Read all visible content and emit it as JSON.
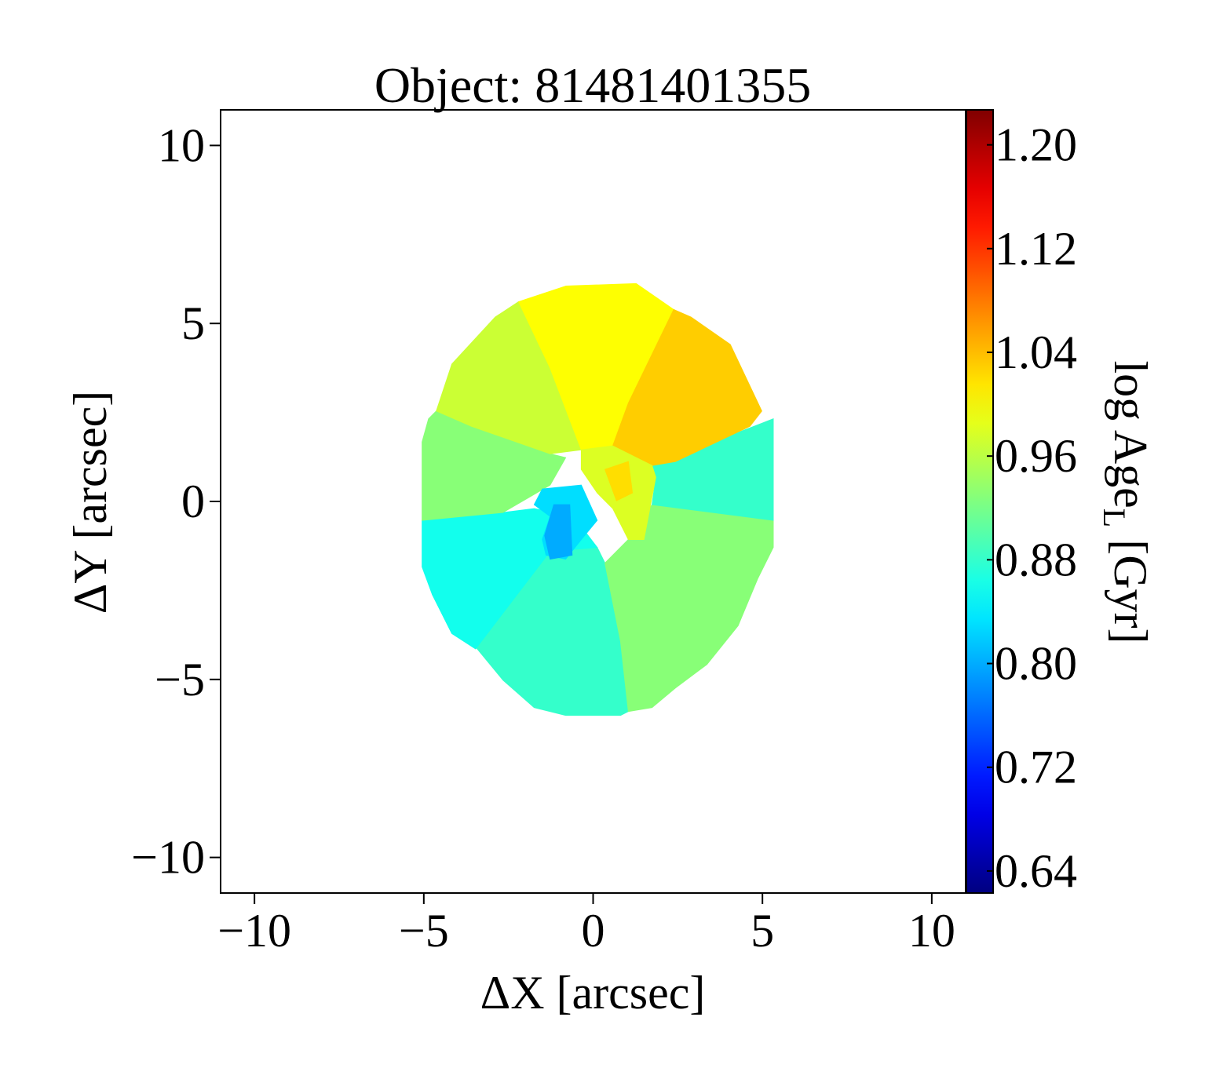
{
  "chart_data": {
    "type": "binned-map",
    "title": "Object: 81481401355",
    "xlabel": "ΔX [arcsec]",
    "ylabel": "ΔY [arcsec]",
    "colorbar_label": [
      "log Age",
      "L",
      " [Gyr]"
    ],
    "colormap": "jet",
    "xlim": [
      -11,
      11
    ],
    "ylim": [
      -11,
      11
    ],
    "clim": [
      0.623,
      1.227
    ],
    "xticks": [
      {
        "value": -10,
        "label": "−10"
      },
      {
        "value": -5,
        "label": "−5"
      },
      0,
      5,
      10
    ],
    "yticks": [
      {
        "value": -10,
        "label": "−10"
      },
      {
        "value": -5,
        "label": "−5"
      },
      0,
      5,
      10
    ],
    "cticks": [
      0.64,
      0.72,
      {
        "value": 0.8,
        "label": "0.80"
      },
      0.88,
      0.96,
      1.04,
      1.12,
      {
        "value": 1.2,
        "label": "1.20"
      }
    ],
    "bins": [
      {
        "value": 0.88,
        "x": [
          -2.66,
          -1.74,
          -0.81,
          0.81,
          1.04,
          0.81,
          0.35,
          0.12,
          -1.27,
          -3.47,
          -4.17,
          -4.75
        ],
        "y": [
          -5.02,
          -5.79,
          -6.01,
          -6.01,
          -5.9,
          -3.93,
          -1.73,
          -1.29,
          -1.4,
          -4.14,
          -3.71,
          -2.61
        ]
      },
      {
        "value": 0.86,
        "x": [
          -5.05,
          -5.05,
          -4.75,
          -4.17,
          -3.47,
          -1.27,
          0.12,
          -0.58,
          -1.74,
          -2.66
        ],
        "y": [
          -0.53,
          -1.84,
          -2.61,
          -3.71,
          -4.14,
          -1.4,
          -1.29,
          -0.42,
          -0.2,
          -0.31
        ]
      },
      {
        "value": 0.93,
        "x": [
          0.35,
          1.04,
          1.74,
          5.32,
          5.32,
          4.86,
          4.28,
          3.36,
          2.43,
          1.74,
          1.04,
          0.81
        ],
        "y": [
          -1.73,
          -1.07,
          -0.09,
          -0.53,
          -1.29,
          -2.17,
          -3.49,
          -4.58,
          -5.24,
          -5.79,
          -5.9,
          -3.93
        ]
      },
      {
        "value": 0.88,
        "x": [
          1.74,
          4.75,
          5.32,
          5.32,
          1.74,
          1.85
        ],
        "y": [
          1.01,
          2.11,
          2.32,
          -0.53,
          -0.09,
          0.68
        ]
      },
      {
        "value": 0.93,
        "x": [
          -4.63,
          -4.86,
          -5.05,
          -5.05,
          -2.66,
          -1.27,
          -0.81,
          -1.27,
          -3.59
        ],
        "y": [
          2.54,
          2.32,
          1.67,
          -0.53,
          -0.31,
          0.46,
          1.23,
          1.34,
          2.11
        ]
      },
      {
        "value": 0.97,
        "x": [
          -2.2,
          -1.27,
          -0.35,
          -1.27,
          -3.59,
          -4.63,
          -4.17,
          -2.89
        ],
        "y": [
          5.61,
          3.75,
          1.45,
          1.34,
          2.11,
          2.54,
          3.86,
          5.18
        ]
      },
      {
        "value": 1.0,
        "x": [
          -0.8,
          1.27,
          2.38,
          1.04,
          0.58,
          -0.35,
          -1.27,
          -2.2
        ],
        "y": [
          6.05,
          6.12,
          5.39,
          2.76,
          1.56,
          1.45,
          3.75,
          5.61
        ]
      },
      {
        "value": 1.03,
        "x": [
          2.38,
          2.89,
          4.05,
          4.98,
          4.63,
          2.43,
          1.74,
          0.58,
          1.04
        ],
        "y": [
          5.39,
          5.18,
          4.41,
          2.54,
          2.11,
          1.12,
          1.01,
          1.56,
          2.76
        ]
      },
      {
        "value": 0.98,
        "x": [
          -0.35,
          0.58,
          1.74,
          1.85,
          1.5,
          1.04,
          0.58,
          0.12,
          -0.35
        ],
        "y": [
          1.45,
          1.56,
          1.01,
          0.68,
          -1.07,
          -1.07,
          -0.2,
          0.24,
          0.9
        ]
      },
      {
        "value": 1.02,
        "x": [
          0.35,
          1.04,
          1.16,
          0.69
        ],
        "y": [
          0.9,
          1.12,
          0.24,
          0.02
        ]
      },
      {
        "value": 0.83,
        "x": [
          -1.5,
          -0.35,
          0.12,
          -0.35,
          -0.81,
          -1.39,
          -1.5,
          -1.27,
          -1.74
        ],
        "y": [
          0.35,
          0.46,
          -0.53,
          -1.07,
          -1.62,
          -1.51,
          -1.07,
          -0.42,
          -0.09
        ]
      },
      {
        "value": 0.8,
        "x": [
          -1.16,
          -0.69,
          -0.62,
          -1.27,
          -1.43
        ],
        "y": [
          -0.09,
          -0.09,
          -1.51,
          -1.62,
          -0.96
        ]
      }
    ]
  }
}
